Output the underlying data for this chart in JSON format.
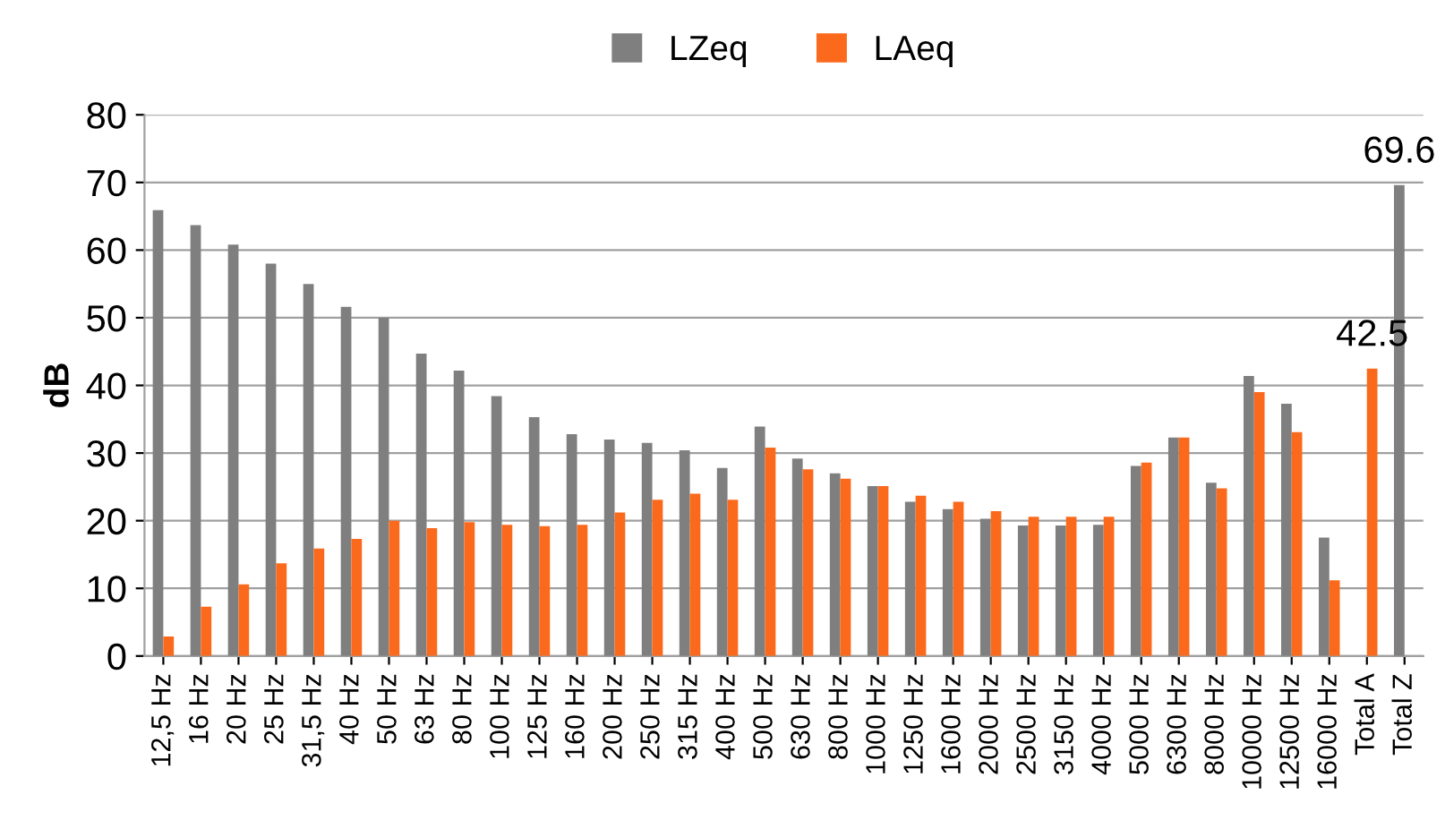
{
  "chart_data": {
    "type": "bar",
    "ylabel": "dB",
    "categories": [
      "12,5 Hz",
      "16 Hz",
      "20 Hz",
      "25 Hz",
      "31,5 Hz",
      "40 Hz",
      "50 Hz",
      "63 Hz",
      "80 Hz",
      "100 Hz",
      "125 Hz",
      "160 Hz",
      "200 Hz",
      "250 Hz",
      "315 Hz",
      "400 Hz",
      "500 Hz",
      "630 Hz",
      "800 Hz",
      "1000 Hz",
      "1250 Hz",
      "1600 Hz",
      "2000 Hz",
      "2500 Hz",
      "3150 Hz",
      "4000 Hz",
      "5000 Hz",
      "6300 Hz",
      "8000 Hz",
      "10000 Hz",
      "12500 Hz",
      "16000 Hz",
      "Total A",
      "Total Z"
    ],
    "series": [
      {
        "name": "LZeq",
        "color": "#7f7f7f",
        "values": [
          65.9,
          63.7,
          60.8,
          58.0,
          55.0,
          51.6,
          50.0,
          44.7,
          42.2,
          38.4,
          35.3,
          32.8,
          32.0,
          31.5,
          30.4,
          27.8,
          33.9,
          29.2,
          27.0,
          25.1,
          22.8,
          21.7,
          20.3,
          19.3,
          19.3,
          19.4,
          28.1,
          32.3,
          25.6,
          41.4,
          37.3,
          17.5,
          null,
          69.6
        ],
        "value_labels": [
          null,
          null,
          null,
          null,
          null,
          null,
          null,
          null,
          null,
          null,
          null,
          null,
          null,
          null,
          null,
          null,
          null,
          null,
          null,
          null,
          null,
          null,
          null,
          null,
          null,
          null,
          null,
          null,
          null,
          null,
          null,
          null,
          null,
          "69.6"
        ]
      },
      {
        "name": "LAeq",
        "color": "#fb6a1c",
        "values": [
          2.9,
          7.3,
          10.6,
          13.7,
          15.9,
          17.3,
          20.0,
          18.9,
          19.8,
          19.4,
          19.2,
          19.4,
          21.2,
          23.1,
          24.0,
          23.1,
          30.8,
          27.6,
          26.2,
          25.1,
          23.7,
          22.8,
          21.4,
          20.6,
          20.6,
          20.6,
          28.6,
          32.3,
          24.8,
          39.0,
          33.1,
          11.2,
          42.5,
          null
        ],
        "value_labels": [
          null,
          null,
          null,
          null,
          null,
          null,
          null,
          null,
          null,
          null,
          null,
          null,
          null,
          null,
          null,
          null,
          null,
          null,
          null,
          null,
          null,
          null,
          null,
          null,
          null,
          null,
          null,
          null,
          null,
          null,
          null,
          null,
          "42.5",
          null
        ]
      }
    ],
    "ylim": [
      0,
      80
    ],
    "yticks": [
      0,
      10,
      20,
      30,
      40,
      50,
      60,
      70,
      80
    ],
    "grid": "y",
    "legend": "top"
  }
}
